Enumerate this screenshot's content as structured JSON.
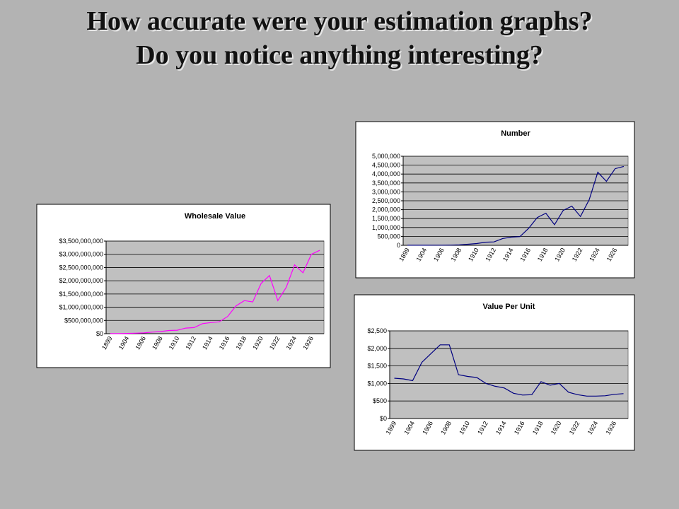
{
  "slide": {
    "title": [
      "How accurate were your estimation graphs?",
      "Do you notice anything interesting?"
    ]
  },
  "chart_data": [
    {
      "type": "line",
      "title": "Wholesale Value",
      "color": "#ff00ff",
      "grid": true,
      "categories": [
        "1899",
        null,
        "1904",
        null,
        "1906",
        null,
        "1908",
        null,
        "1910",
        null,
        "1912",
        null,
        "1914",
        null,
        "1916",
        null,
        "1918",
        null,
        "1920",
        null,
        "1922",
        null,
        "1924",
        null,
        "1926",
        null
      ],
      "values": [
        5000000,
        5000000,
        10000000,
        20000000,
        30000000,
        60000000,
        80000000,
        120000000,
        130000000,
        210000000,
        230000000,
        380000000,
        420000000,
        450000000,
        650000000,
        1050000000,
        1250000000,
        1200000000,
        1900000000,
        2200000000,
        1250000000,
        1750000000,
        2600000000,
        2300000000,
        3000000000,
        3150000000
      ],
      "ylim": [
        0,
        3500000000
      ],
      "yticks": [
        {
          "value": 0,
          "label": "$0"
        },
        {
          "value": 500000000,
          "label": "$500,000,000"
        },
        {
          "value": 1000000000,
          "label": "$1,000,000,000"
        },
        {
          "value": 1500000000,
          "label": "$1,500,000,000"
        },
        {
          "value": 2000000000,
          "label": "$2,000,000,000"
        },
        {
          "value": 2500000000,
          "label": "$2,500,000,000"
        },
        {
          "value": 3000000000,
          "label": "$3,000,000,000"
        },
        {
          "value": 3500000000,
          "label": "$3,500,000,000"
        }
      ]
    },
    {
      "type": "line",
      "title": "Number",
      "color": "#000080",
      "grid": true,
      "categories": [
        "1899",
        null,
        "1904",
        null,
        "1906",
        null,
        "1908",
        null,
        "1910",
        null,
        "1912",
        null,
        "1914",
        null,
        "1916",
        null,
        "1918",
        null,
        "1920",
        null,
        "1922",
        null,
        "1924",
        null,
        "1926",
        null
      ],
      "values": [
        2500,
        3700,
        4000,
        6000,
        9000,
        12000,
        25000,
        60000,
        100000,
        175000,
        190000,
        380000,
        460000,
        490000,
        950000,
        1560000,
        1800000,
        1160000,
        1960000,
        2200000,
        1620000,
        2560000,
        4100000,
        3590000,
        4300000,
        4430000
      ],
      "ylim": [
        0,
        5000000
      ],
      "yticks": [
        0,
        {
          "value": 500000,
          "label": "500,000"
        },
        {
          "value": 1000000,
          "label": "1,000,000"
        },
        {
          "value": 1500000,
          "label": "1,500,000"
        },
        {
          "value": 2000000,
          "label": "2,000,000"
        },
        {
          "value": 2500000,
          "label": "2,500,000"
        },
        {
          "value": 3000000,
          "label": "3,000,000"
        },
        {
          "value": 3500000,
          "label": "3,500,000"
        },
        {
          "value": 4000000,
          "label": "4,000,000"
        },
        {
          "value": 4500000,
          "label": "4,500,000"
        },
        {
          "value": 5000000,
          "label": "5,000,000"
        }
      ]
    },
    {
      "type": "line",
      "title": "Value Per Unit",
      "color": "#000080",
      "grid": true,
      "categories": [
        "1899",
        null,
        "1904",
        null,
        "1906",
        null,
        "1908",
        null,
        "1910",
        null,
        "1912",
        null,
        "1914",
        null,
        "1916",
        null,
        "1918",
        null,
        "1920",
        null,
        "1922",
        null,
        "1924",
        null,
        "1926",
        null
      ],
      "values": [
        1150,
        1130,
        1080,
        1600,
        1850,
        2100,
        2100,
        1250,
        1200,
        1170,
        1000,
        920,
        870,
        720,
        670,
        680,
        1050,
        950,
        1000,
        750,
        680,
        640,
        640,
        650,
        690,
        710
      ],
      "ylim": [
        0,
        2500
      ],
      "yticks": [
        {
          "value": 0,
          "label": "$0"
        },
        {
          "value": 500,
          "label": "$500"
        },
        {
          "value": 1000,
          "label": "$1,000"
        },
        {
          "value": 1500,
          "label": "$1,500"
        },
        {
          "value": 2000,
          "label": "$2,000"
        },
        {
          "value": 2500,
          "label": "$2,500"
        }
      ]
    }
  ]
}
